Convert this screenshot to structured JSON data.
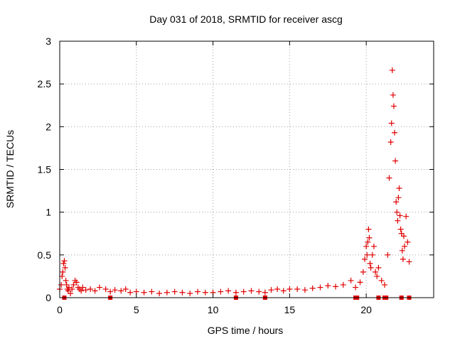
{
  "chart_data": {
    "type": "scatter",
    "title": "Day 031 of 2018, SRMTID for receiver ascg",
    "xlabel": "GPS time / hours",
    "ylabel": "SRMTID / TECUs",
    "xlim": [
      0,
      24.4
    ],
    "ylim": [
      0,
      3
    ],
    "xticks": [
      0,
      5,
      10,
      15,
      20
    ],
    "xtick_labels": [
      "0",
      "5",
      "10",
      "15",
      "20"
    ],
    "yticks": [
      0,
      0.5,
      1,
      1.5,
      2,
      2.5,
      3
    ],
    "ytick_labels": [
      "0",
      "0.5",
      "1",
      "1.5",
      "2",
      "2.5",
      "3"
    ],
    "grid": true,
    "marker": "plus",
    "color": "#e00000",
    "series": [
      {
        "name": "SRMTID",
        "x": [
          0.0,
          0.1,
          0.15,
          0.2,
          0.25,
          0.3,
          0.35,
          0.4,
          0.45,
          0.5,
          0.55,
          0.6,
          0.7,
          0.8,
          0.9,
          1.0,
          1.1,
          1.2,
          1.3,
          1.4,
          1.5,
          1.7,
          2.0,
          2.3,
          2.6,
          3.0,
          3.3,
          3.6,
          4.0,
          4.3,
          4.6,
          5.0,
          5.5,
          6.0,
          6.5,
          7.0,
          7.5,
          8.0,
          8.5,
          9.0,
          9.5,
          10.0,
          10.5,
          11.0,
          11.5,
          12.0,
          12.5,
          13.0,
          13.4,
          13.8,
          14.2,
          14.6,
          15.0,
          15.5,
          16.0,
          16.5,
          17.0,
          17.5,
          18.0,
          18.5,
          19.0,
          19.3,
          19.6,
          19.8,
          19.9,
          20.0,
          20.05,
          20.1,
          20.15,
          20.2,
          20.25,
          20.3,
          20.4,
          20.5,
          20.6,
          20.7,
          20.8,
          21.0,
          21.2,
          21.4,
          21.5,
          21.6,
          21.65,
          21.7,
          21.75,
          21.8,
          21.85,
          21.9,
          21.95,
          22.0,
          22.05,
          22.1,
          22.15,
          22.2,
          22.25,
          22.3,
          22.35,
          22.4,
          22.45,
          22.5,
          22.6,
          22.7,
          22.8
        ],
        "y": [
          0.1,
          0.15,
          0.25,
          0.3,
          0.4,
          0.43,
          0.35,
          0.2,
          0.15,
          0.1,
          0.08,
          0.12,
          0.05,
          0.1,
          0.15,
          0.2,
          0.18,
          0.12,
          0.1,
          0.08,
          0.12,
          0.09,
          0.1,
          0.08,
          0.12,
          0.1,
          0.07,
          0.09,
          0.08,
          0.1,
          0.06,
          0.07,
          0.06,
          0.07,
          0.05,
          0.06,
          0.07,
          0.06,
          0.05,
          0.07,
          0.06,
          0.06,
          0.07,
          0.08,
          0.06,
          0.07,
          0.08,
          0.07,
          0.06,
          0.09,
          0.1,
          0.08,
          0.1,
          0.1,
          0.09,
          0.11,
          0.12,
          0.14,
          0.13,
          0.15,
          0.2,
          0.12,
          0.18,
          0.3,
          0.45,
          0.6,
          0.5,
          0.65,
          0.8,
          0.7,
          0.4,
          0.35,
          0.5,
          0.6,
          0.3,
          0.25,
          0.35,
          0.2,
          0.15,
          0.5,
          1.4,
          1.82,
          2.04,
          2.66,
          2.37,
          2.24,
          1.93,
          1.6,
          1.12,
          1.0,
          0.9,
          1.17,
          1.28,
          0.96,
          0.8,
          0.75,
          0.55,
          0.45,
          0.72,
          0.6,
          0.95,
          0.65,
          0.42
        ]
      }
    ],
    "zero_markers_x": [
      0.3,
      3.3,
      11.5,
      13.4,
      19.3,
      19.4,
      20.8,
      21.2,
      21.3,
      22.3,
      22.8
    ]
  }
}
